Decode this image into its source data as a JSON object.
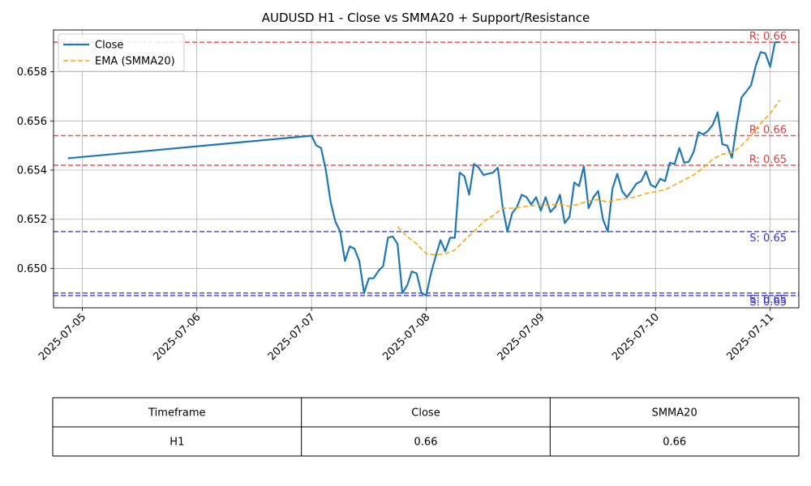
{
  "chart_data": {
    "type": "line",
    "title": "AUDUSD H1 - Close vs SMMA20 + Support/Resistance",
    "xlabel": "",
    "ylabel": "",
    "x_ticks": [
      "2025-07-05",
      "2025-07-06",
      "2025-07-07",
      "2025-07-08",
      "2025-07-09",
      "2025-07-10",
      "2025-07-11"
    ],
    "y_ticks": [
      "0.650",
      "0.652",
      "0.654",
      "0.656",
      "0.658"
    ],
    "xlim": [
      "2025-07-04T18:00",
      "2025-07-11T06:00"
    ],
    "ylim": [
      0.6484,
      0.6597
    ],
    "grid": true,
    "legend": "top-left",
    "series": [
      {
        "name": "Close",
        "color": "#1f77b4",
        "style": "solid",
        "points": [
          [
            "2025-07-04T21:00",
            0.65448
          ],
          [
            "2025-07-07T00:00",
            0.6554
          ],
          [
            "2025-07-07T01:00",
            0.655
          ],
          [
            "2025-07-07T02:00",
            0.6549
          ],
          [
            "2025-07-07T03:00",
            0.654
          ],
          [
            "2025-07-07T04:00",
            0.6527
          ],
          [
            "2025-07-07T05:00",
            0.6519
          ],
          [
            "2025-07-07T06:00",
            0.6515
          ],
          [
            "2025-07-07T07:00",
            0.6503
          ],
          [
            "2025-07-07T08:00",
            0.6509
          ],
          [
            "2025-07-07T09:00",
            0.6508
          ],
          [
            "2025-07-07T10:00",
            0.6503
          ],
          [
            "2025-07-07T11:00",
            0.649
          ],
          [
            "2025-07-07T12:00",
            0.6496
          ],
          [
            "2025-07-07T13:00",
            0.6496
          ],
          [
            "2025-07-07T14:00",
            0.6499
          ],
          [
            "2025-07-07T15:00",
            0.6501
          ],
          [
            "2025-07-07T16:00",
            0.65125
          ],
          [
            "2025-07-07T17:00",
            0.6513
          ],
          [
            "2025-07-07T18:00",
            0.651
          ],
          [
            "2025-07-07T19:00",
            0.649
          ],
          [
            "2025-07-07T20:00",
            0.6493
          ],
          [
            "2025-07-07T21:00",
            0.64988
          ],
          [
            "2025-07-07T22:00",
            0.6498
          ],
          [
            "2025-07-07T23:00",
            0.649
          ],
          [
            "2025-07-08T00:00",
            0.6489
          ],
          [
            "2025-07-08T01:00",
            0.6498
          ],
          [
            "2025-07-08T02:00",
            0.6505
          ],
          [
            "2025-07-08T03:00",
            0.65115
          ],
          [
            "2025-07-08T04:00",
            0.6507
          ],
          [
            "2025-07-08T05:00",
            0.65125
          ],
          [
            "2025-07-08T06:00",
            0.65125
          ],
          [
            "2025-07-08T07:00",
            0.6539
          ],
          [
            "2025-07-08T08:00",
            0.65375
          ],
          [
            "2025-07-08T09:00",
            0.653
          ],
          [
            "2025-07-08T10:00",
            0.65425
          ],
          [
            "2025-07-08T11:00",
            0.6541
          ],
          [
            "2025-07-08T12:00",
            0.6538
          ],
          [
            "2025-07-08T13:00",
            0.65385
          ],
          [
            "2025-07-08T14:00",
            0.6539
          ],
          [
            "2025-07-08T15:00",
            0.6541
          ],
          [
            "2025-07-08T16:00",
            0.6525
          ],
          [
            "2025-07-08T17:00",
            0.6515
          ],
          [
            "2025-07-08T18:00",
            0.65225
          ],
          [
            "2025-07-08T19:00",
            0.6525
          ],
          [
            "2025-07-08T20:00",
            0.653
          ],
          [
            "2025-07-08T21:00",
            0.6529
          ],
          [
            "2025-07-08T22:00",
            0.6526
          ],
          [
            "2025-07-08T23:00",
            0.6529
          ],
          [
            "2025-07-09T00:00",
            0.65235
          ],
          [
            "2025-07-09T01:00",
            0.6529
          ],
          [
            "2025-07-09T02:00",
            0.6523
          ],
          [
            "2025-07-09T03:00",
            0.6525
          ],
          [
            "2025-07-09T04:00",
            0.653
          ],
          [
            "2025-07-09T05:00",
            0.65185
          ],
          [
            "2025-07-09T06:00",
            0.6521
          ],
          [
            "2025-07-09T07:00",
            0.6535
          ],
          [
            "2025-07-09T08:00",
            0.65335
          ],
          [
            "2025-07-09T09:00",
            0.65415
          ],
          [
            "2025-07-09T10:00",
            0.65245
          ],
          [
            "2025-07-09T11:00",
            0.6529
          ],
          [
            "2025-07-09T12:00",
            0.65315
          ],
          [
            "2025-07-09T13:00",
            0.652
          ],
          [
            "2025-07-09T14:00",
            0.6515
          ],
          [
            "2025-07-09T15:00",
            0.65325
          ],
          [
            "2025-07-09T16:00",
            0.65385
          ],
          [
            "2025-07-09T17:00",
            0.65315
          ],
          [
            "2025-07-09T18:00",
            0.6529
          ],
          [
            "2025-07-09T19:00",
            0.65315
          ],
          [
            "2025-07-09T20:00",
            0.65345
          ],
          [
            "2025-07-09T21:00",
            0.65355
          ],
          [
            "2025-07-09T22:00",
            0.65395
          ],
          [
            "2025-07-09T23:00",
            0.6534
          ],
          [
            "2025-07-10T00:00",
            0.6533
          ],
          [
            "2025-07-10T01:00",
            0.65365
          ],
          [
            "2025-07-10T02:00",
            0.65355
          ],
          [
            "2025-07-10T03:00",
            0.6543
          ],
          [
            "2025-07-10T04:00",
            0.65425
          ],
          [
            "2025-07-10T05:00",
            0.6549
          ],
          [
            "2025-07-10T06:00",
            0.6543
          ],
          [
            "2025-07-10T07:00",
            0.65435
          ],
          [
            "2025-07-10T08:00",
            0.65475
          ],
          [
            "2025-07-10T09:00",
            0.65555
          ],
          [
            "2025-07-10T10:00",
            0.65545
          ],
          [
            "2025-07-10T11:00",
            0.6556
          ],
          [
            "2025-07-10T12:00",
            0.65585
          ],
          [
            "2025-07-10T13:00",
            0.65635
          ],
          [
            "2025-07-10T14:00",
            0.65505
          ],
          [
            "2025-07-10T15:00",
            0.655
          ],
          [
            "2025-07-10T16:00",
            0.6545
          ],
          [
            "2025-07-10T17:00",
            0.65585
          ],
          [
            "2025-07-10T18:00",
            0.65695
          ],
          [
            "2025-07-10T19:00",
            0.6572
          ],
          [
            "2025-07-10T20:00",
            0.65745
          ],
          [
            "2025-07-10T21:00",
            0.65825
          ],
          [
            "2025-07-10T22:00",
            0.6588
          ],
          [
            "2025-07-10T23:00",
            0.65875
          ],
          [
            "2025-07-11T00:00",
            0.6582
          ],
          [
            "2025-07-11T01:00",
            0.6592
          ],
          [
            "2025-07-11T02:00",
            0.6592
          ]
        ]
      },
      {
        "name": "EMA (SMMA20)",
        "color": "#ffa500",
        "style": "dashed",
        "points": [
          [
            "2025-07-07T18:00",
            0.6517
          ],
          [
            "2025-07-07T20:00",
            0.6513
          ],
          [
            "2025-07-07T22:00",
            0.651
          ],
          [
            "2025-07-08T00:00",
            0.6506
          ],
          [
            "2025-07-08T02:00",
            0.65055
          ],
          [
            "2025-07-08T04:00",
            0.6506
          ],
          [
            "2025-07-08T06:00",
            0.65075
          ],
          [
            "2025-07-08T08:00",
            0.65115
          ],
          [
            "2025-07-08T10:00",
            0.6515
          ],
          [
            "2025-07-08T12:00",
            0.6519
          ],
          [
            "2025-07-08T14:00",
            0.65215
          ],
          [
            "2025-07-08T16:00",
            0.65245
          ],
          [
            "2025-07-08T18:00",
            0.65245
          ],
          [
            "2025-07-08T20:00",
            0.6525
          ],
          [
            "2025-07-08T22:00",
            0.65255
          ],
          [
            "2025-07-09T00:00",
            0.65258
          ],
          [
            "2025-07-09T02:00",
            0.65258
          ],
          [
            "2025-07-09T04:00",
            0.65262
          ],
          [
            "2025-07-09T06:00",
            0.65252
          ],
          [
            "2025-07-09T08:00",
            0.65262
          ],
          [
            "2025-07-09T10:00",
            0.65275
          ],
          [
            "2025-07-09T12:00",
            0.6528
          ],
          [
            "2025-07-09T14:00",
            0.6527
          ],
          [
            "2025-07-09T16:00",
            0.6528
          ],
          [
            "2025-07-09T18:00",
            0.65285
          ],
          [
            "2025-07-09T20:00",
            0.65292
          ],
          [
            "2025-07-09T22:00",
            0.65305
          ],
          [
            "2025-07-10T00:00",
            0.65312
          ],
          [
            "2025-07-10T02:00",
            0.6532
          ],
          [
            "2025-07-10T04:00",
            0.6534
          ],
          [
            "2025-07-10T06:00",
            0.6536
          ],
          [
            "2025-07-10T08:00",
            0.6538
          ],
          [
            "2025-07-10T10:00",
            0.6541
          ],
          [
            "2025-07-10T12:00",
            0.65445
          ],
          [
            "2025-07-10T14:00",
            0.65465
          ],
          [
            "2025-07-10T16:00",
            0.6547
          ],
          [
            "2025-07-10T18:00",
            0.655
          ],
          [
            "2025-07-10T20:00",
            0.6554
          ],
          [
            "2025-07-10T22:00",
            0.6559
          ],
          [
            "2025-07-11T00:00",
            0.6563
          ],
          [
            "2025-07-11T02:00",
            0.65685
          ]
        ]
      }
    ],
    "levels": [
      {
        "kind": "resistance",
        "value": 0.6592,
        "label": "R: 0.66",
        "color": "#e8383d"
      },
      {
        "kind": "resistance",
        "value": 0.6554,
        "label": "R: 0.66",
        "color": "#e8383d"
      },
      {
        "kind": "resistance",
        "value": 0.6542,
        "label": "R: 0.65",
        "color": "#e8383d"
      },
      {
        "kind": "support",
        "value": 0.6515,
        "label": "S: 0.65",
        "color": "#3333dd"
      },
      {
        "kind": "support",
        "value": 0.649,
        "label": "S: 0.65",
        "color": "#3333dd"
      },
      {
        "kind": "support",
        "value": 0.6489,
        "label": "S: 0.65",
        "color": "#3333dd"
      }
    ],
    "table": {
      "headers": [
        "Timeframe",
        "Close",
        "SMMA20"
      ],
      "rows": [
        [
          "H1",
          "0.66",
          "0.66"
        ]
      ]
    }
  }
}
